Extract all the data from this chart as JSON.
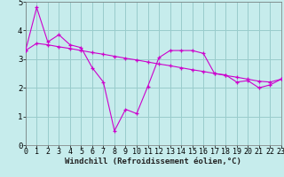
{
  "xlabel": "Windchill (Refroidissement éolien,°C)",
  "bg_color": "#c6ecec",
  "grid_color": "#99cccc",
  "line_color": "#cc00cc",
  "xlim": [
    0,
    23
  ],
  "ylim": [
    0,
    5
  ],
  "yticks": [
    0,
    1,
    2,
    3,
    4,
    5
  ],
  "xticks": [
    0,
    1,
    2,
    3,
    4,
    5,
    6,
    7,
    8,
    9,
    10,
    11,
    12,
    13,
    14,
    15,
    16,
    17,
    18,
    19,
    20,
    21,
    22,
    23
  ],
  "series1_x": [
    0,
    1,
    2,
    3,
    4,
    5,
    6,
    7,
    8,
    9,
    10,
    11,
    12,
    13,
    14,
    15,
    16,
    17,
    18,
    19,
    20,
    21,
    22,
    23
  ],
  "series1_y": [
    3.3,
    4.8,
    3.6,
    3.85,
    3.5,
    3.4,
    2.7,
    2.2,
    0.5,
    1.25,
    1.1,
    2.05,
    3.05,
    3.3,
    3.3,
    3.3,
    3.2,
    2.5,
    2.45,
    2.2,
    2.25,
    2.0,
    2.1,
    2.3
  ],
  "series2_x": [
    0,
    1,
    2,
    3,
    4,
    5,
    6,
    7,
    8,
    9,
    10,
    11,
    12,
    13,
    14,
    15,
    16,
    17,
    18,
    19,
    20,
    21,
    22,
    23
  ],
  "series2_y": [
    3.3,
    3.55,
    3.5,
    3.43,
    3.37,
    3.3,
    3.23,
    3.17,
    3.1,
    3.03,
    2.97,
    2.9,
    2.83,
    2.77,
    2.7,
    2.63,
    2.57,
    2.5,
    2.43,
    2.37,
    2.3,
    2.23,
    2.2,
    2.3
  ],
  "xlabel_fontsize": 6.5,
  "tick_fontsize": 6,
  "ytick_fontsize": 6.5
}
